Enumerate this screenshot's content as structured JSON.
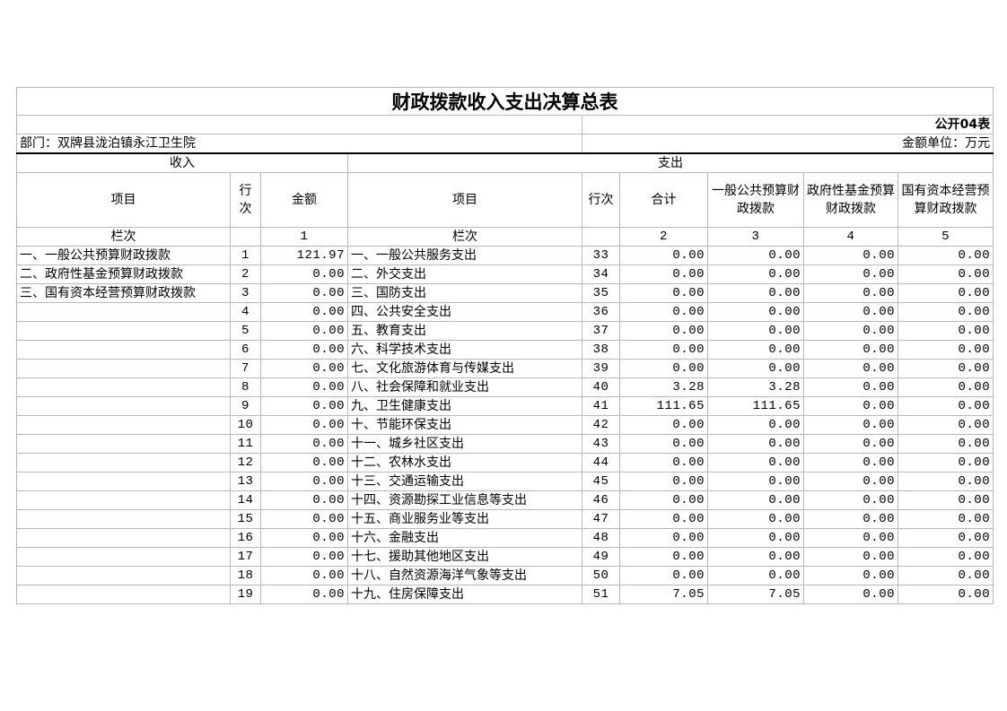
{
  "title": "财政拨款收入支出决算总表",
  "form_code": "公开04表",
  "department": "部门：双牌县泷泊镇永江卫生院",
  "unit": "金额单位：万元",
  "income_header": "收入",
  "expense_header": "支出",
  "columns": {
    "income_item": "项目",
    "income_line": "行次",
    "income_amount": "金额",
    "expense_item": "项目",
    "expense_line": "行次",
    "total": "合计",
    "general_budget": "一般公共预算财政拨款",
    "gov_fund": "政府性基金预算财政拨款",
    "state_capital": "国有资本经营预算财政拨款"
  },
  "column_index_row": {
    "income_label": "栏次",
    "income_amount": "1",
    "expense_label": "栏次",
    "total": "2",
    "general_budget": "3",
    "gov_fund": "4",
    "state_capital": "5"
  },
  "rows": [
    {
      "income_item": "一、一般公共预算财政拨款",
      "income_line": "1",
      "income_amount": "121.97",
      "expense_item": "一、一般公共服务支出",
      "expense_line": "33",
      "total": "0.00",
      "general": "0.00",
      "fund": "0.00",
      "capital": "0.00"
    },
    {
      "income_item": "二、政府性基金预算财政拨款",
      "income_line": "2",
      "income_amount": "0.00",
      "expense_item": "二、外交支出",
      "expense_line": "34",
      "total": "0.00",
      "general": "0.00",
      "fund": "0.00",
      "capital": "0.00"
    },
    {
      "income_item": "三、国有资本经营预算财政拨款",
      "income_line": "3",
      "income_amount": "0.00",
      "expense_item": "三、国防支出",
      "expense_line": "35",
      "total": "0.00",
      "general": "0.00",
      "fund": "0.00",
      "capital": "0.00"
    },
    {
      "income_item": "",
      "income_line": "4",
      "income_amount": "0.00",
      "expense_item": "四、公共安全支出",
      "expense_line": "36",
      "total": "0.00",
      "general": "0.00",
      "fund": "0.00",
      "capital": "0.00"
    },
    {
      "income_item": "",
      "income_line": "5",
      "income_amount": "0.00",
      "expense_item": "五、教育支出",
      "expense_line": "37",
      "total": "0.00",
      "general": "0.00",
      "fund": "0.00",
      "capital": "0.00"
    },
    {
      "income_item": "",
      "income_line": "6",
      "income_amount": "0.00",
      "expense_item": "六、科学技术支出",
      "expense_line": "38",
      "total": "0.00",
      "general": "0.00",
      "fund": "0.00",
      "capital": "0.00"
    },
    {
      "income_item": "",
      "income_line": "7",
      "income_amount": "0.00",
      "expense_item": "七、文化旅游体育与传媒支出",
      "expense_line": "39",
      "total": "0.00",
      "general": "0.00",
      "fund": "0.00",
      "capital": "0.00"
    },
    {
      "income_item": "",
      "income_line": "8",
      "income_amount": "0.00",
      "expense_item": "八、社会保障和就业支出",
      "expense_line": "40",
      "total": "3.28",
      "general": "3.28",
      "fund": "0.00",
      "capital": "0.00"
    },
    {
      "income_item": "",
      "income_line": "9",
      "income_amount": "0.00",
      "expense_item": "九、卫生健康支出",
      "expense_line": "41",
      "total": "111.65",
      "general": "111.65",
      "fund": "0.00",
      "capital": "0.00"
    },
    {
      "income_item": "",
      "income_line": "10",
      "income_amount": "0.00",
      "expense_item": "十、节能环保支出",
      "expense_line": "42",
      "total": "0.00",
      "general": "0.00",
      "fund": "0.00",
      "capital": "0.00"
    },
    {
      "income_item": "",
      "income_line": "11",
      "income_amount": "0.00",
      "expense_item": "十一、城乡社区支出",
      "expense_line": "43",
      "total": "0.00",
      "general": "0.00",
      "fund": "0.00",
      "capital": "0.00"
    },
    {
      "income_item": "",
      "income_line": "12",
      "income_amount": "0.00",
      "expense_item": "十二、农林水支出",
      "expense_line": "44",
      "total": "0.00",
      "general": "0.00",
      "fund": "0.00",
      "capital": "0.00"
    },
    {
      "income_item": "",
      "income_line": "13",
      "income_amount": "0.00",
      "expense_item": "十三、交通运输支出",
      "expense_line": "45",
      "total": "0.00",
      "general": "0.00",
      "fund": "0.00",
      "capital": "0.00"
    },
    {
      "income_item": "",
      "income_line": "14",
      "income_amount": "0.00",
      "expense_item": "十四、资源勘探工业信息等支出",
      "expense_line": "46",
      "total": "0.00",
      "general": "0.00",
      "fund": "0.00",
      "capital": "0.00"
    },
    {
      "income_item": "",
      "income_line": "15",
      "income_amount": "0.00",
      "expense_item": "十五、商业服务业等支出",
      "expense_line": "47",
      "total": "0.00",
      "general": "0.00",
      "fund": "0.00",
      "capital": "0.00"
    },
    {
      "income_item": "",
      "income_line": "16",
      "income_amount": "0.00",
      "expense_item": "十六、金融支出",
      "expense_line": "48",
      "total": "0.00",
      "general": "0.00",
      "fund": "0.00",
      "capital": "0.00"
    },
    {
      "income_item": "",
      "income_line": "17",
      "income_amount": "0.00",
      "expense_item": "十七、援助其他地区支出",
      "expense_line": "49",
      "total": "0.00",
      "general": "0.00",
      "fund": "0.00",
      "capital": "0.00"
    },
    {
      "income_item": "",
      "income_line": "18",
      "income_amount": "0.00",
      "expense_item": "十八、自然资源海洋气象等支出",
      "expense_line": "50",
      "total": "0.00",
      "general": "0.00",
      "fund": "0.00",
      "capital": "0.00"
    },
    {
      "income_item": "",
      "income_line": "19",
      "income_amount": "0.00",
      "expense_item": "十九、住房保障支出",
      "expense_line": "51",
      "total": "7.05",
      "general": "7.05",
      "fund": "0.00",
      "capital": "0.00"
    }
  ]
}
